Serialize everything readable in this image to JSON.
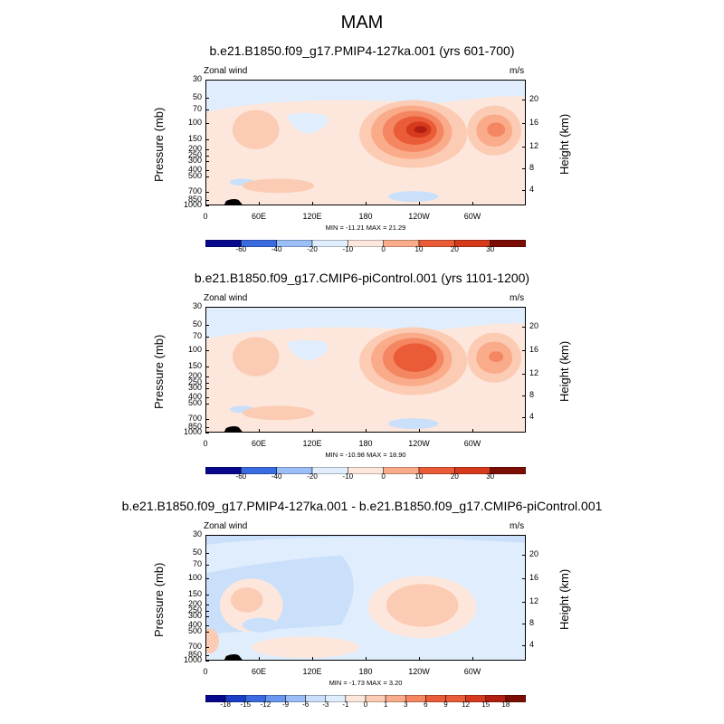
{
  "main_title": "MAM",
  "colors": {
    "negative": [
      "#08088c",
      "#1c3fc8",
      "#3a6be0",
      "#6a97ef",
      "#9cbef6",
      "#c9dffa",
      "#dfedfc"
    ],
    "positive": [
      "#fde7dc",
      "#fccbb4",
      "#f9ab8a",
      "#f48661",
      "#ea5c37",
      "#d63a1c",
      "#b11f10",
      "#7c0d04"
    ]
  },
  "chart_data": [
    {
      "type": "contour",
      "title": "b.e21.B1850.f09_g17.PMIP4-127ka.001 (yrs 601-700)",
      "left_label": "Zonal wind",
      "right_label": "m/s",
      "ylabel": "Pressure (mb)",
      "right_ylabel": "Height (km)",
      "y_ticks": [
        "30",
        "50",
        "70",
        "100",
        "150",
        "200",
        "250",
        "300",
        "400",
        "500",
        "700",
        "850",
        "1000"
      ],
      "right_ticks": [
        "20",
        "16",
        "12",
        "8",
        "4"
      ],
      "x_ticks": [
        "0",
        "60E",
        "120E",
        "180",
        "120W",
        "60W"
      ],
      "stats": "MIN = -11.21   MAX =  21.29",
      "colorbar_labels": [
        "-60",
        "-40",
        "-20",
        "-10",
        "0",
        "10",
        "20",
        "30"
      ],
      "min": -11.21,
      "max": 21.29
    },
    {
      "type": "contour",
      "title": "b.e21.B1850.f09_g17.CMIP6-piControl.001 (yrs 1101-1200)",
      "left_label": "Zonal wind",
      "right_label": "m/s",
      "ylabel": "Pressure (mb)",
      "right_ylabel": "Height (km)",
      "y_ticks": [
        "30",
        "50",
        "70",
        "100",
        "150",
        "200",
        "250",
        "300",
        "400",
        "500",
        "700",
        "850",
        "1000"
      ],
      "right_ticks": [
        "20",
        "16",
        "12",
        "8",
        "4"
      ],
      "x_ticks": [
        "0",
        "60E",
        "120E",
        "180",
        "120W",
        "60W"
      ],
      "stats": "MIN = -10.98   MAX =  18.90",
      "colorbar_labels": [
        "-60",
        "-40",
        "-20",
        "-10",
        "0",
        "10",
        "20",
        "30"
      ],
      "min": -10.98,
      "max": 18.9
    },
    {
      "type": "contour",
      "title": "b.e21.B1850.f09_g17.PMIP4-127ka.001 - b.e21.B1850.f09_g17.CMIP6-piControl.001",
      "left_label": "Zonal wind",
      "right_label": "m/s",
      "ylabel": "Pressure (mb)",
      "right_ylabel": "Height (km)",
      "y_ticks": [
        "30",
        "50",
        "70",
        "100",
        "150",
        "200",
        "250",
        "300",
        "400",
        "500",
        "700",
        "850",
        "1000"
      ],
      "right_ticks": [
        "20",
        "16",
        "12",
        "8",
        "4"
      ],
      "x_ticks": [
        "0",
        "60E",
        "120E",
        "180",
        "120W",
        "60W"
      ],
      "stats": "MIN =  -1.73   MAX =   3.20",
      "colorbar_labels": [
        "-18",
        "-15",
        "-12",
        "-9",
        "-6",
        "-3",
        "-1",
        "0",
        "1",
        "3",
        "6",
        "9",
        "12",
        "15",
        "18"
      ],
      "min": -1.73,
      "max": 3.2
    }
  ]
}
